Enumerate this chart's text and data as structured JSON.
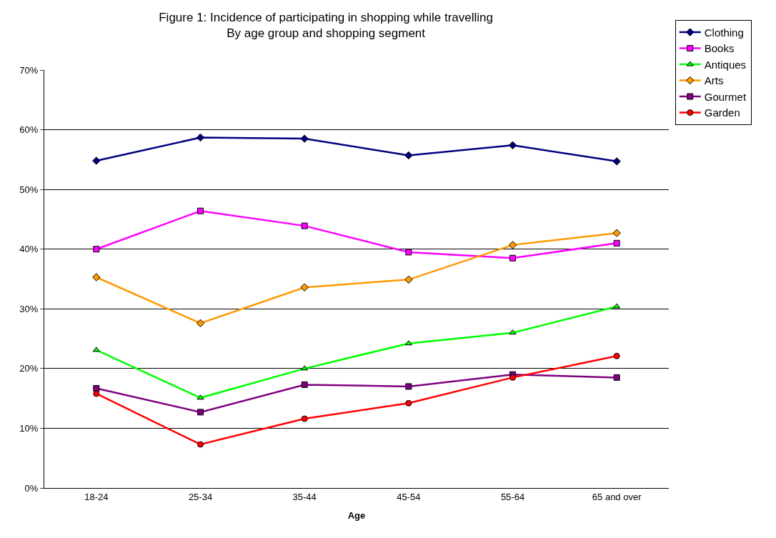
{
  "chart_data": {
    "type": "line",
    "title": "Figure 1: Incidence of participating in shopping while travelling",
    "subtitle": "By age group and shopping segment",
    "xlabel": "Age",
    "categories": [
      "18-24",
      "25-34",
      "35-44",
      "45-54",
      "55-64",
      "65 and over"
    ],
    "series": [
      {
        "name": "Clothing",
        "color": "#000080",
        "marker": "diamond",
        "values": [
          54.8,
          58.7,
          58.5,
          55.7,
          57.4,
          54.7
        ]
      },
      {
        "name": "Books",
        "color": "#ff00ff",
        "marker": "square",
        "values": [
          40.0,
          46.4,
          43.9,
          39.5,
          38.5,
          41.0
        ]
      },
      {
        "name": "Antiques",
        "color": "#00ff00",
        "marker": "triangle",
        "values": [
          23.1,
          15.1,
          20.0,
          24.2,
          26.0,
          30.4
        ]
      },
      {
        "name": "Arts",
        "color": "#ff9900",
        "marker": "diamond",
        "values": [
          35.3,
          27.6,
          33.6,
          34.9,
          40.7,
          42.7
        ]
      },
      {
        "name": "Gourmet",
        "color": "#800080",
        "marker": "square",
        "values": [
          16.7,
          12.7,
          17.3,
          17.0,
          19.0,
          18.5
        ]
      },
      {
        "name": "Garden",
        "color": "#ff0000",
        "marker": "circle",
        "values": [
          15.8,
          7.3,
          11.6,
          14.2,
          18.5,
          22.1
        ]
      }
    ],
    "ylim": [
      0,
      70
    ],
    "yticks": [
      {
        "value": 0,
        "label": "0%"
      },
      {
        "value": 10,
        "label": "10%"
      },
      {
        "value": 20,
        "label": "20%"
      },
      {
        "value": 30,
        "label": "30%"
      },
      {
        "value": 40,
        "label": "40%"
      },
      {
        "value": 50,
        "label": "50%"
      },
      {
        "value": 60,
        "label": "60%"
      },
      {
        "value": 70,
        "label": "70%"
      }
    ],
    "grid": "y",
    "legend": "top right",
    "line_style": "solid"
  }
}
